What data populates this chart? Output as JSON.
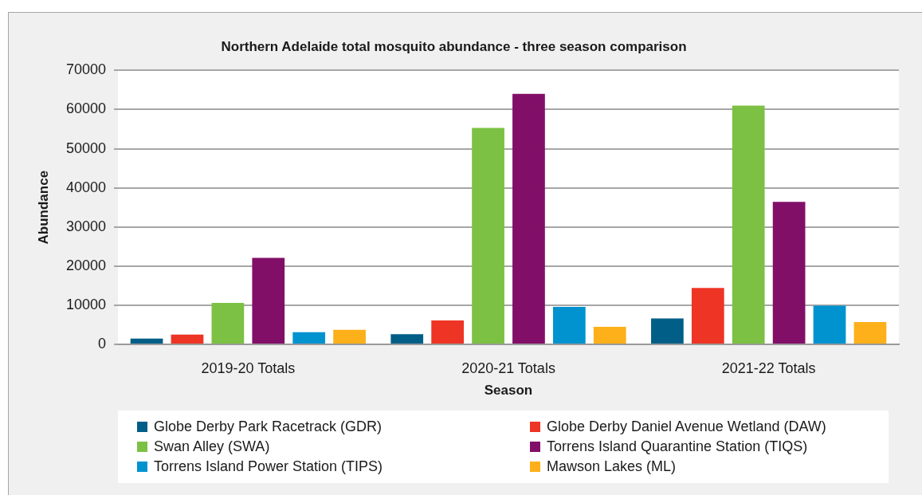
{
  "chart_data": {
    "type": "bar",
    "title": "Northern Adelaide total mosquito abundance - three season comparison",
    "xlabel": "Season",
    "ylabel": "Abundance",
    "categories": [
      "2019-20 Totals",
      "2020-21 Totals",
      "2021-22 Totals"
    ],
    "series": [
      {
        "name": "Globe Derby Park Racetrack (GDR)",
        "color": "#005e87",
        "values": [
          1500,
          2600,
          6600
        ]
      },
      {
        "name": "Globe Derby Daniel Avenue Wetland (DAW)",
        "color": "#ee3424",
        "values": [
          2500,
          6100,
          14400
        ]
      },
      {
        "name": "Swan Alley (SWA)",
        "color": "#7cc143",
        "values": [
          10600,
          55300,
          61000
        ]
      },
      {
        "name": "Torrens Island Quarantine Station (TIQS)",
        "color": "#810f68",
        "values": [
          22100,
          64000,
          36400
        ]
      },
      {
        "name": "Torrens Island Power Station (TIPS)",
        "color": "#0093d0",
        "values": [
          3100,
          9600,
          9900
        ]
      },
      {
        "name": "Mawson Lakes (ML)",
        "color": "#fdb01a",
        "values": [
          3700,
          4500,
          5700
        ]
      }
    ],
    "ylim": [
      0,
      70000
    ],
    "yticks": [
      0,
      10000,
      20000,
      30000,
      40000,
      50000,
      60000,
      70000
    ],
    "grid": "y",
    "legend": "bottom"
  }
}
